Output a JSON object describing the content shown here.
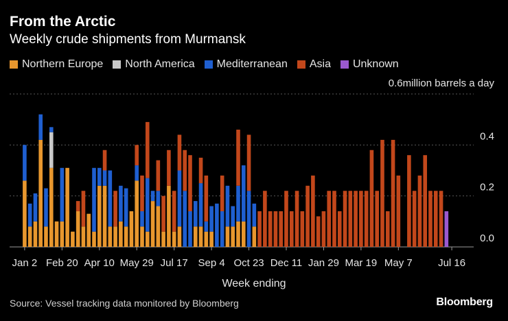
{
  "header": {
    "title": "From the Arctic",
    "subtitle": "Weekly crude shipments from Murmansk"
  },
  "footer": {
    "source": "Source: Vessel tracking data monitored by Bloomberg",
    "brand": "Bloomberg"
  },
  "chart_data": {
    "type": "bar",
    "stacked": true,
    "unit_label": "million barrels a day",
    "xlabel": "Week ending",
    "ylim": [
      0,
      0.6
    ],
    "y_ticks": [
      {
        "value": 0.0,
        "label": "0.0"
      },
      {
        "value": 0.2,
        "label": "0.2"
      },
      {
        "value": 0.4,
        "label": "0.4"
      },
      {
        "value": 0.6,
        "label": "0.6"
      }
    ],
    "x_tick_labels": [
      {
        "index": 0,
        "label": "Jan 2"
      },
      {
        "index": 7,
        "label": "Feb 20"
      },
      {
        "index": 14,
        "label": "Apr 10"
      },
      {
        "index": 21,
        "label": "May 29"
      },
      {
        "index": 28,
        "label": "Jul 17"
      },
      {
        "index": 35,
        "label": "Sep 4"
      },
      {
        "index": 42,
        "label": "Oct 23"
      },
      {
        "index": 49,
        "label": "Dec 11"
      },
      {
        "index": 56,
        "label": "Jan 29"
      },
      {
        "index": 63,
        "label": "Mar 19"
      },
      {
        "index": 70,
        "label": "May 7"
      },
      {
        "index": 80,
        "label": "Jul 16"
      }
    ],
    "grid": true,
    "legend_position": "top-left",
    "series": [
      {
        "name": "Northern Europe",
        "color": "#e8972e",
        "values": [
          0.26,
          0.08,
          0.1,
          0.42,
          0.08,
          0.31,
          0.1,
          0.1,
          0.31,
          0.06,
          0.14,
          0.08,
          0.13,
          0.06,
          0.24,
          0.24,
          0.08,
          0.08,
          0.1,
          0.08,
          0.14,
          0.26,
          0.08,
          0.06,
          0.18,
          0.16,
          0.06,
          0.24,
          0.06,
          0.08,
          0,
          0,
          0.08,
          0.08,
          0.06,
          0.06,
          0,
          0,
          0.08,
          0.08,
          0.1,
          0.1,
          0,
          0.08,
          0,
          0,
          0,
          0,
          0,
          0,
          0,
          0,
          0,
          0,
          0,
          0,
          0,
          0,
          0,
          0,
          0,
          0,
          0,
          0,
          0,
          0,
          0,
          0,
          0,
          0,
          0,
          0,
          0,
          0,
          0,
          0,
          0,
          0,
          0,
          0,
          0
        ]
      },
      {
        "name": "North America",
        "color": "#c9c9c9",
        "values": [
          0,
          0,
          0,
          0,
          0,
          0.14,
          0,
          0,
          0,
          0,
          0,
          0,
          0,
          0,
          0,
          0,
          0,
          0,
          0,
          0,
          0,
          0,
          0,
          0,
          0,
          0,
          0,
          0,
          0,
          0,
          0,
          0,
          0,
          0,
          0,
          0,
          0,
          0,
          0,
          0,
          0,
          0,
          0,
          0,
          0,
          0,
          0,
          0,
          0,
          0,
          0,
          0,
          0,
          0,
          0,
          0,
          0,
          0,
          0,
          0,
          0,
          0,
          0,
          0,
          0,
          0,
          0,
          0,
          0,
          0,
          0,
          0,
          0,
          0,
          0,
          0,
          0,
          0,
          0,
          0,
          0
        ]
      },
      {
        "name": "Mediterranean",
        "color": "#1f5fd0",
        "values": [
          0.14,
          0.09,
          0.11,
          0.1,
          0.15,
          0.02,
          0,
          0.21,
          0,
          0,
          0,
          0,
          0,
          0.25,
          0.07,
          0.06,
          0.22,
          0,
          0.14,
          0.15,
          0,
          0.06,
          0.06,
          0.21,
          0.04,
          0.06,
          0,
          0,
          0,
          0.22,
          0.22,
          0.14,
          0.1,
          0.17,
          0.04,
          0.1,
          0.17,
          0.14,
          0.16,
          0.08,
          0.14,
          0.22,
          0.22,
          0.09,
          0,
          0,
          0,
          0,
          0,
          0,
          0,
          0,
          0,
          0,
          0,
          0,
          0,
          0,
          0,
          0,
          0,
          0,
          0,
          0,
          0,
          0,
          0,
          0,
          0,
          0,
          0,
          0,
          0,
          0,
          0,
          0,
          0,
          0,
          0,
          0,
          0
        ]
      },
      {
        "name": "Asia",
        "color": "#c2471b",
        "values": [
          0,
          0,
          0,
          0,
          0,
          0,
          0,
          0,
          0,
          0,
          0.04,
          0.14,
          0,
          0,
          0,
          0.08,
          0,
          0.14,
          0,
          0,
          0,
          0.08,
          0.14,
          0.22,
          0,
          0.12,
          0.14,
          0.14,
          0.16,
          0.14,
          0.16,
          0.22,
          0,
          0.1,
          0.18,
          0,
          0,
          0.14,
          0,
          0,
          0.22,
          0,
          0.22,
          0,
          0.14,
          0.22,
          0.14,
          0.14,
          0.14,
          0.22,
          0.14,
          0.22,
          0.14,
          0.24,
          0.28,
          0.12,
          0.14,
          0.22,
          0.22,
          0.14,
          0.22,
          0.22,
          0.22,
          0.22,
          0.22,
          0.38,
          0.22,
          0.42,
          0.14,
          0.42,
          0.28,
          0,
          0.36,
          0.22,
          0.28,
          0.36,
          0.22,
          0.22,
          0.22,
          0,
          0
        ]
      },
      {
        "name": "Unknown",
        "color": "#9a59cf",
        "values": [
          0,
          0,
          0,
          0,
          0,
          0,
          0,
          0,
          0,
          0,
          0,
          0,
          0,
          0,
          0,
          0,
          0,
          0,
          0,
          0,
          0,
          0,
          0,
          0,
          0,
          0,
          0,
          0,
          0,
          0,
          0,
          0,
          0,
          0,
          0,
          0,
          0,
          0,
          0,
          0,
          0,
          0,
          0,
          0,
          0,
          0,
          0,
          0,
          0,
          0,
          0,
          0,
          0,
          0,
          0,
          0,
          0,
          0,
          0,
          0,
          0,
          0,
          0,
          0,
          0,
          0,
          0,
          0,
          0,
          0,
          0,
          0,
          0,
          0,
          0,
          0,
          0,
          0,
          0,
          0.14,
          0
        ]
      }
    ],
    "totals_note": "",
    "tail": [
      0.44,
      0.42,
      0.22,
      0.28
    ]
  }
}
